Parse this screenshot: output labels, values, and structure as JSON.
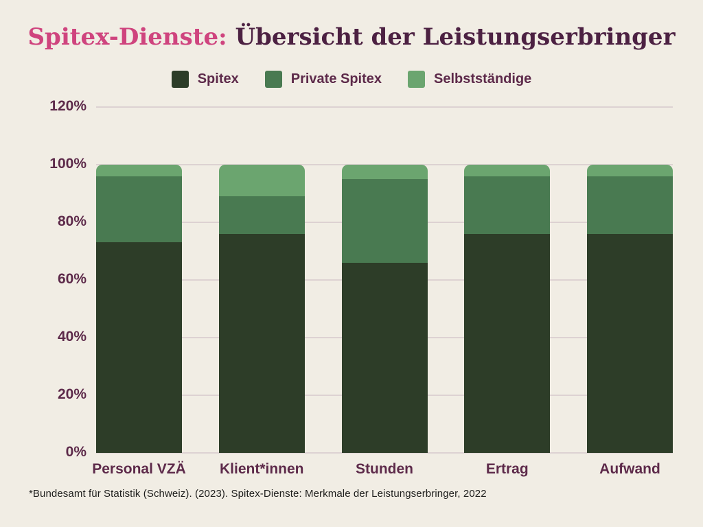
{
  "title": {
    "highlight": "Spitex-Dienste:",
    "rest": " Übersicht der Leistungserbringer"
  },
  "footer": {
    "source_note": "*Bundesamt für Statistik (Schweiz). (2023). Spitex-Dienste: Merkmale der Leistungserbringer, 2022"
  },
  "colors": {
    "background": "#f1ede4",
    "title_highlight": "#cf447e",
    "title_text": "#4c2142",
    "axis_text": "#5d2a4a",
    "gridline": "#ddd2d2",
    "footer_text": "#1e1e1c",
    "spitex_green": "#2d3d28",
    "private_spitex_green": "#497a51",
    "selbststaendige_green": "#6ba56f"
  },
  "chart_data": {
    "type": "bar",
    "stacked": true,
    "title": "Spitex-Dienste: Übersicht der Leistungserbringer",
    "categories": [
      "Personal VZÄ",
      "Klient*innen",
      "Stunden",
      "Ertrag",
      "Aufwand"
    ],
    "series": [
      {
        "name": "Spitex",
        "color": "#2d3d28",
        "values": [
          73,
          76,
          66,
          76,
          76
        ]
      },
      {
        "name": "Private Spitex",
        "color": "#497a51",
        "values": [
          23,
          13,
          29,
          20,
          20
        ]
      },
      {
        "name": "Selbstständige",
        "color": "#6ba56f",
        "values": [
          4,
          11,
          5,
          4,
          4
        ]
      }
    ],
    "xlabel": "",
    "ylabel": "",
    "unit": "%",
    "y_ticks": [
      0,
      20,
      40,
      60,
      80,
      100,
      120
    ],
    "ylim": [
      0,
      120
    ],
    "grid": true,
    "legend_position": "top"
  }
}
